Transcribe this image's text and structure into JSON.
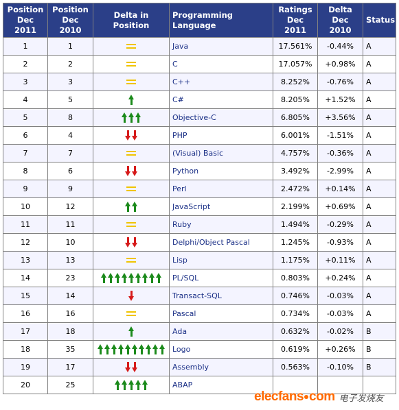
{
  "table": {
    "headers": {
      "pos2011_line1": "Position",
      "pos2011_line2": "Dec 2011",
      "pos2010_line1": "Position",
      "pos2010_line2": "Dec 2010",
      "delta_position": "Delta in Position",
      "language": "Programming Language",
      "ratings_line1": "Ratings",
      "ratings_line2": "Dec 2011",
      "delta_line1": "Delta",
      "delta_line2": "Dec 2010",
      "status": "Status"
    },
    "rows": [
      {
        "pos2011": "1",
        "pos2010": "1",
        "lang": "Java",
        "rating": "17.561%",
        "delta": "-0.44%",
        "status": "A"
      },
      {
        "pos2011": "2",
        "pos2010": "2",
        "lang": "C",
        "rating": "17.057%",
        "delta": "+0.98%",
        "status": "A"
      },
      {
        "pos2011": "3",
        "pos2010": "3",
        "lang": "C++",
        "rating": "8.252%",
        "delta": "-0.76%",
        "status": "A"
      },
      {
        "pos2011": "4",
        "pos2010": "5",
        "lang": "C#",
        "rating": "8.205%",
        "delta": "+1.52%",
        "status": "A"
      },
      {
        "pos2011": "5",
        "pos2010": "8",
        "lang": "Objective-C",
        "rating": "6.805%",
        "delta": "+3.56%",
        "status": "A"
      },
      {
        "pos2011": "6",
        "pos2010": "4",
        "lang": "PHP",
        "rating": "6.001%",
        "delta": "-1.51%",
        "status": "A"
      },
      {
        "pos2011": "7",
        "pos2010": "7",
        "lang": "(Visual) Basic",
        "rating": "4.757%",
        "delta": "-0.36%",
        "status": "A"
      },
      {
        "pos2011": "8",
        "pos2010": "6",
        "lang": "Python",
        "rating": "3.492%",
        "delta": "-2.99%",
        "status": "A"
      },
      {
        "pos2011": "9",
        "pos2010": "9",
        "lang": "Perl",
        "rating": "2.472%",
        "delta": "+0.14%",
        "status": "A"
      },
      {
        "pos2011": "10",
        "pos2010": "12",
        "lang": "JavaScript",
        "rating": "2.199%",
        "delta": "+0.69%",
        "status": "A"
      },
      {
        "pos2011": "11",
        "pos2010": "11",
        "lang": "Ruby",
        "rating": "1.494%",
        "delta": "-0.29%",
        "status": "A"
      },
      {
        "pos2011": "12",
        "pos2010": "10",
        "lang": "Delphi/Object Pascal",
        "rating": "1.245%",
        "delta": "-0.93%",
        "status": "A"
      },
      {
        "pos2011": "13",
        "pos2010": "13",
        "lang": "Lisp",
        "rating": "1.175%",
        "delta": "+0.11%",
        "status": "A"
      },
      {
        "pos2011": "14",
        "pos2010": "23",
        "lang": "PL/SQL",
        "rating": "0.803%",
        "delta": "+0.24%",
        "status": "A"
      },
      {
        "pos2011": "15",
        "pos2010": "14",
        "lang": "Transact-SQL",
        "rating": "0.746%",
        "delta": "-0.03%",
        "status": "A"
      },
      {
        "pos2011": "16",
        "pos2010": "16",
        "lang": "Pascal",
        "rating": "0.734%",
        "delta": "-0.03%",
        "status": "A"
      },
      {
        "pos2011": "17",
        "pos2010": "18",
        "lang": "Ada",
        "rating": "0.632%",
        "delta": "-0.02%",
        "status": "B"
      },
      {
        "pos2011": "18",
        "pos2010": "35",
        "lang": "Logo",
        "rating": "0.619%",
        "delta": "+0.26%",
        "status": "B"
      },
      {
        "pos2011": "19",
        "pos2010": "17",
        "lang": "Assembly",
        "rating": "0.563%",
        "delta": "-0.10%",
        "status": "B"
      },
      {
        "pos2011": "20",
        "pos2010": "25",
        "lang": "ABAP",
        "rating": "",
        "delta": "",
        "status": ""
      }
    ],
    "arrows": {
      "equal_color": "#f0c400",
      "up_color": "#1b8a1b",
      "down_color": "#d61a1a"
    }
  },
  "watermark": {
    "logo": "elecfans",
    "suffix": "com",
    "chinese": "电子发烧友"
  }
}
